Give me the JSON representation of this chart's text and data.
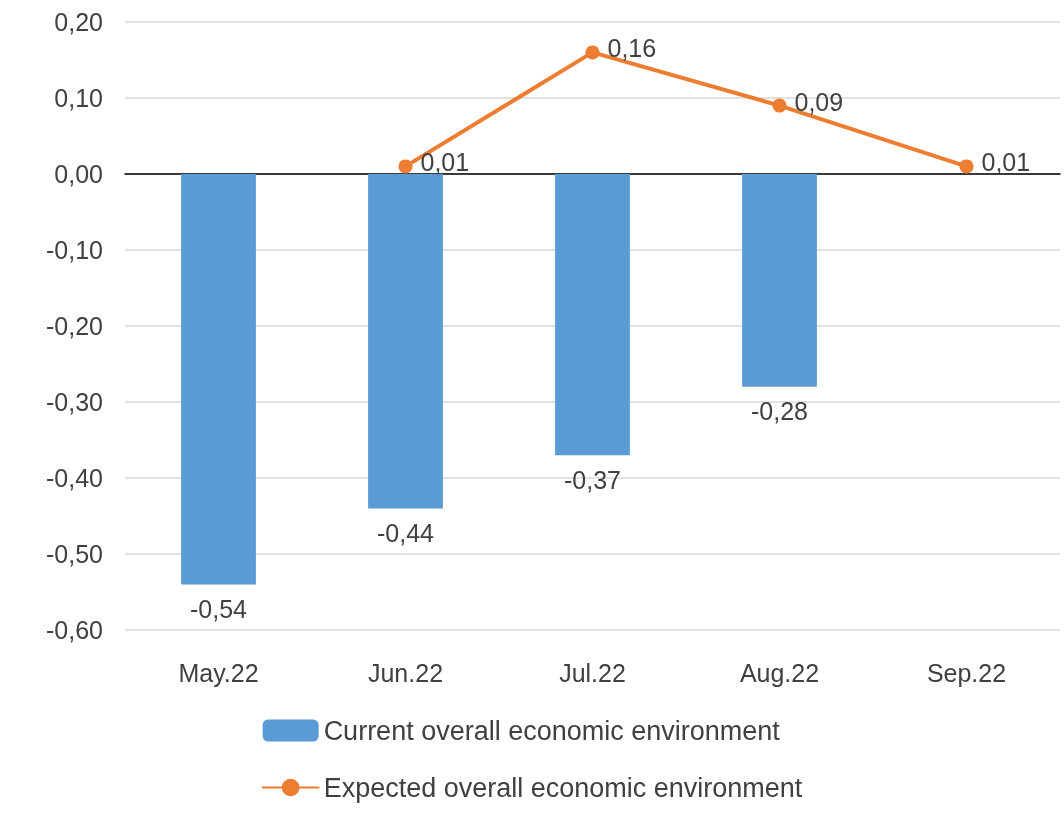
{
  "chart_data": {
    "type": "bar",
    "categories": [
      "May.22",
      "Jun.22",
      "Jul.22",
      "Aug.22",
      "Sep.22"
    ],
    "series": [
      {
        "name": "Current overall economic environment",
        "color": "#5b9bd5",
        "values": [
          -0.54,
          -0.44,
          -0.37,
          -0.28,
          null
        ],
        "value_labels": [
          "-0,54",
          "-0,44",
          "-0,37",
          "-0,28",
          null
        ]
      },
      {
        "name": "Expected overall economic environment",
        "type": "line",
        "color": "#ed7d31",
        "values": [
          null,
          0.01,
          0.16,
          0.09,
          0.01
        ],
        "value_labels": [
          null,
          "0,01",
          "0,16",
          "0,09",
          "0,01"
        ],
        "marker": "circle"
      }
    ],
    "ylim": [
      -0.6,
      0.2
    ],
    "yticks": [
      {
        "value": -0.6,
        "label": "-0,60"
      },
      {
        "value": -0.5,
        "label": "-0,50"
      },
      {
        "value": -0.4,
        "label": "-0,40"
      },
      {
        "value": -0.3,
        "label": "-0,30"
      },
      {
        "value": -0.2,
        "label": "-0,20"
      },
      {
        "value": -0.1,
        "label": "-0,10"
      },
      {
        "value": 0,
        "label": "0,00"
      },
      {
        "value": 0.1,
        "label": "0,10"
      },
      {
        "value": 0.2,
        "label": "0,20"
      }
    ],
    "grid": "y",
    "legend": "bottom"
  }
}
